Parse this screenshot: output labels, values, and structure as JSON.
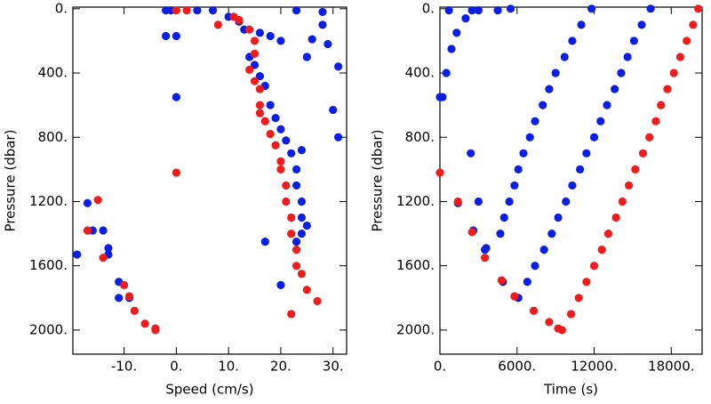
{
  "chart_data": [
    {
      "type": "scatter",
      "xlabel": "Speed (cm/s)",
      "ylabel": "Pressure (dbar)",
      "xlim": [
        -19.8,
        32.6
      ],
      "ylim": [
        2150,
        -10
      ],
      "xticks": [
        {
          "value": -10,
          "label": "-10."
        },
        {
          "value": 0,
          "label": "0."
        },
        {
          "value": 10,
          "label": "10."
        },
        {
          "value": 20,
          "label": "20."
        },
        {
          "value": 30,
          "label": "30."
        }
      ],
      "yticks": [
        {
          "value": 0,
          "label": "0."
        },
        {
          "value": 400,
          "label": "400."
        },
        {
          "value": 800,
          "label": "800."
        },
        {
          "value": 1200,
          "label": "1200."
        },
        {
          "value": 1600,
          "label": "1600."
        },
        {
          "value": 2000,
          "label": "2000."
        }
      ],
      "series": [
        {
          "color": "#0a1ee6",
          "x": [
            -2,
            -1,
            4,
            7,
            10,
            12,
            13,
            16,
            18,
            20,
            14,
            15,
            16,
            17,
            18,
            19,
            20,
            21,
            22,
            23,
            23,
            24,
            24,
            25,
            24,
            23,
            20,
            17,
            24,
            25,
            26,
            28,
            29,
            31,
            30,
            31,
            0,
            -2,
            0,
            -17,
            -16,
            -14,
            -13,
            -13,
            -19,
            -11,
            -11,
            -9,
            28,
            23
          ],
          "values": [
            10,
            10,
            10,
            10,
            50,
            80,
            130,
            150,
            170,
            200,
            300,
            350,
            420,
            480,
            600,
            680,
            750,
            820,
            900,
            1000,
            1100,
            1200,
            1300,
            1350,
            1400,
            1450,
            1720,
            1450,
            880,
            300,
            190,
            100,
            220,
            360,
            630,
            800,
            550,
            170,
            170,
            1210,
            1380,
            1380,
            1490,
            1530,
            1530,
            1700,
            1800,
            1800,
            20,
            10
          ]
        },
        {
          "color": "#ee1c1c",
          "x": [
            0,
            2,
            8,
            11,
            12,
            14,
            15,
            15,
            14,
            15,
            16,
            16,
            16,
            17,
            18,
            19,
            20,
            20,
            21,
            21,
            22,
            22,
            23,
            23,
            24,
            25,
            27,
            22,
            0,
            -15,
            -17,
            -14,
            -10,
            -9,
            -8,
            -6,
            -4,
            -4
          ],
          "values": [
            10,
            10,
            100,
            50,
            70,
            130,
            200,
            280,
            380,
            450,
            500,
            600,
            650,
            700,
            780,
            850,
            950,
            1000,
            1100,
            1200,
            1300,
            1400,
            1500,
            1600,
            1650,
            1750,
            1820,
            1900,
            1020,
            1190,
            1380,
            1550,
            1720,
            1790,
            1880,
            1960,
            2000,
            1990
          ]
        }
      ]
    },
    {
      "type": "scatter",
      "xlabel": "Time (s)",
      "ylabel": "Pressure (dbar)",
      "xlim": [
        0,
        20400
      ],
      "ylim": [
        2150,
        -10
      ],
      "xticks": [
        {
          "value": 0,
          "label": "0."
        },
        {
          "value": 6000,
          "label": "6000."
        },
        {
          "value": 12000,
          "label": "12000."
        },
        {
          "value": 18000,
          "label": "18000."
        }
      ],
      "yticks": [
        {
          "value": 0,
          "label": "0."
        },
        {
          "value": 400,
          "label": "400."
        },
        {
          "value": 800,
          "label": "800."
        },
        {
          "value": 1200,
          "label": "1200."
        },
        {
          "value": 1600,
          "label": "1600."
        },
        {
          "value": 2000,
          "label": "2000."
        }
      ],
      "series": [
        {
          "color": "#0a1ee6",
          "x": [
            0,
            1400,
            2600,
            3600,
            4900,
            6100,
            6800,
            7400,
            8100,
            8700,
            9200,
            9800,
            10300,
            10900,
            11400,
            12000,
            12500,
            13000,
            13600,
            14100,
            14600,
            15100,
            15700,
            16400,
            4700,
            5000,
            5400,
            5800,
            6100,
            6500,
            7000,
            7400,
            8000,
            8500,
            9000,
            9700,
            10300,
            11000,
            11800,
            200,
            500,
            900,
            1300,
            2000,
            3000,
            700,
            2500,
            4500,
            5500,
            3500,
            3000,
            2400
          ],
          "values": [
            550,
            1210,
            1380,
            1490,
            1700,
            1800,
            1700,
            1600,
            1500,
            1400,
            1300,
            1200,
            1100,
            1000,
            900,
            800,
            700,
            600,
            500,
            400,
            300,
            200,
            100,
            0,
            1400,
            1300,
            1200,
            1100,
            1000,
            900,
            800,
            700,
            600,
            500,
            400,
            300,
            200,
            100,
            0,
            550,
            400,
            250,
            150,
            60,
            10,
            10,
            10,
            10,
            0,
            1500,
            1200,
            900
          ]
        },
        {
          "color": "#ee1c1c",
          "x": [
            0,
            1400,
            2500,
            3500,
            4800,
            5800,
            7300,
            8500,
            9200,
            9500,
            10200,
            10800,
            11400,
            12000,
            12600,
            13100,
            13700,
            14200,
            14700,
            15200,
            15800,
            16300,
            16800,
            17200,
            17700,
            18200,
            18700,
            19200,
            19700,
            20100
          ],
          "values": [
            1020,
            1200,
            1390,
            1550,
            1690,
            1790,
            1880,
            1950,
            1990,
            2000,
            1900,
            1800,
            1700,
            1600,
            1500,
            1400,
            1300,
            1200,
            1100,
            1000,
            900,
            800,
            700,
            600,
            500,
            400,
            300,
            200,
            100,
            0
          ]
        }
      ]
    }
  ]
}
